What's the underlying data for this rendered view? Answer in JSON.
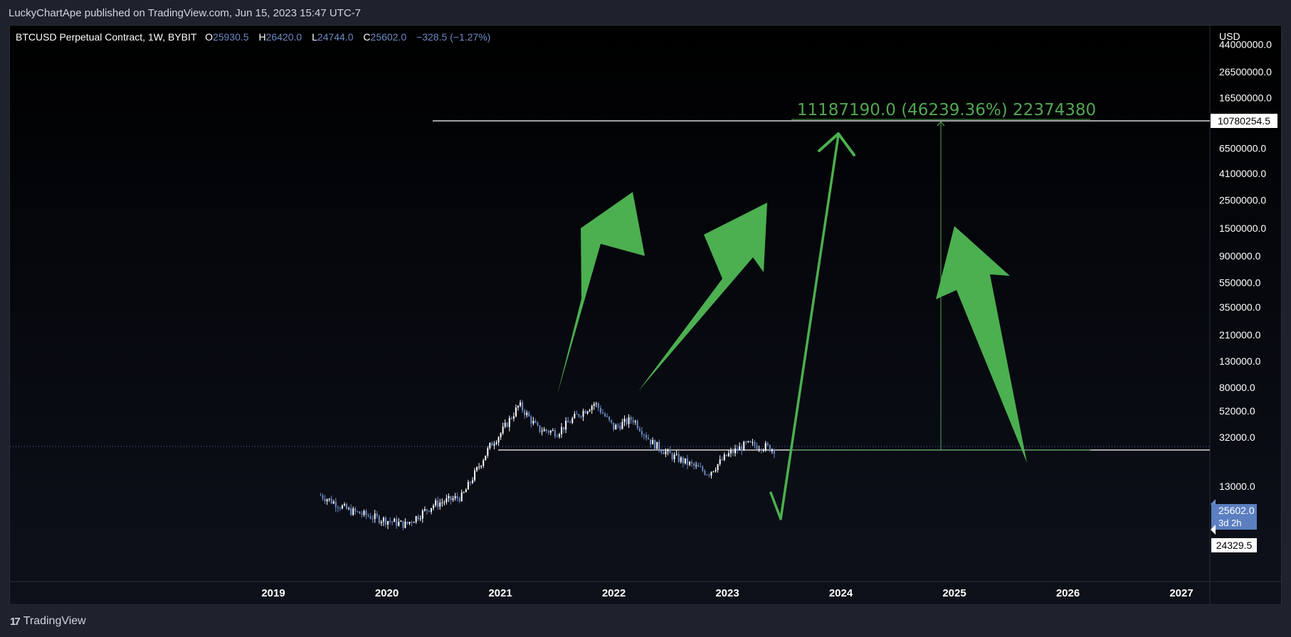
{
  "header": {
    "published_text": "LuckyChartApe published on TradingView.com, Jun 15, 2023 15:47 UTC-7"
  },
  "legend": {
    "symbol": "BTCUSD Perpetual Contract, 1W, BYBIT",
    "open_label": "O",
    "open": "25930.5",
    "high_label": "H",
    "high": "26420.0",
    "low_label": "L",
    "low": "24744.0",
    "close_label": "C",
    "close": "25602.0",
    "change": "−328.5 (−1.27%)"
  },
  "colors": {
    "arrow_green": "#4caf50",
    "measure_green": "#53a653",
    "candle_white": "#ffffff",
    "candle_blue": "#6d89c4",
    "price_tag_blue": "#5b7fc0"
  },
  "chart_data": {
    "type": "candlestick",
    "scale": "log",
    "currency_label": "USD",
    "y_ticks": [
      "44000000.0",
      "26500000.0",
      "16500000.0",
      "6500000.0",
      "4100000.0",
      "2500000.0",
      "1500000.0",
      "900000.0",
      "550000.0",
      "350000.0",
      "210000.0",
      "130000.0",
      "80000.0",
      "52000.0",
      "32000.0",
      "13000.0"
    ],
    "y_tick_values": [
      44000000,
      26500000,
      16500000,
      6500000,
      4100000,
      2500000,
      1500000,
      900000,
      550000,
      350000,
      210000,
      130000,
      80000,
      52000,
      32000,
      13000
    ],
    "x_ticks": [
      "2019",
      "2020",
      "2021",
      "2022",
      "2023",
      "2024",
      "2025",
      "2026",
      "2027"
    ],
    "price_labels": {
      "target": "10780254.5",
      "last": "25602.0",
      "countdown": "3d 2h",
      "support": "24329.5"
    },
    "measure_annotation": "11187190.0 (46239.36%) 22374380",
    "series": [
      {
        "name": "BTCUSD",
        "dates": [
          "2019-06",
          "2019-09",
          "2019-12",
          "2020-03",
          "2020-06",
          "2020-09",
          "2020-12",
          "2021-01",
          "2021-03",
          "2021-05",
          "2021-07",
          "2021-09",
          "2021-11",
          "2022-01",
          "2022-03",
          "2022-05",
          "2022-07",
          "2022-09",
          "2022-11",
          "2023-01",
          "2023-03",
          "2023-05",
          "2023-06"
        ],
        "closes": [
          11000,
          8300,
          7200,
          6400,
          9300,
          10800,
          28000,
          34000,
          58000,
          37000,
          35000,
          47000,
          60000,
          38000,
          45000,
          29000,
          23000,
          19500,
          16500,
          23000,
          28000,
          27000,
          25602
        ]
      }
    ]
  },
  "branding": {
    "name": "TradingView",
    "logo_glyph": "17"
  }
}
